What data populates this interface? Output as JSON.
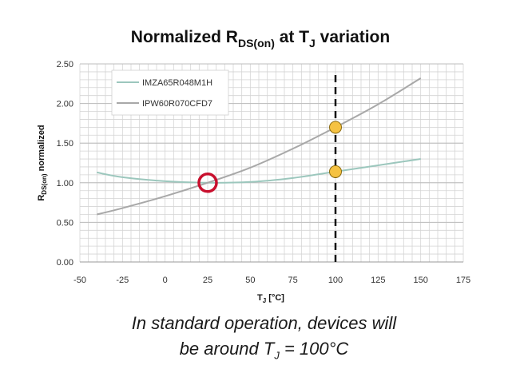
{
  "chart_data": {
    "type": "line",
    "title": "Normalized R",
    "title_sub": "DS(on)",
    "title_mid": " at T",
    "title_sub2": "J",
    "title_end": " variation",
    "xlabel": "T",
    "xlabel_sub": "J",
    "xlabel_end": " [°C]",
    "ylabel": "R",
    "ylabel_sub": "DS(on)",
    "ylabel_end": " normalized",
    "xlim": [
      -50,
      175
    ],
    "ylim": [
      0,
      2.5
    ],
    "x_ticks": [
      -50,
      -25,
      0,
      25,
      50,
      75,
      100,
      125,
      150,
      175
    ],
    "y_ticks": [
      "0.00",
      "0.50",
      "1.00",
      "1.50",
      "2.00",
      "2.50"
    ],
    "y_tick_values": [
      0,
      0.5,
      1,
      1.5,
      2,
      2.5
    ],
    "grid": true,
    "legend_position": "top-left",
    "series": [
      {
        "name": "IMZA65R048M1H",
        "color": "#9cc7bd",
        "x": [
          -40,
          -25,
          0,
          25,
          50,
          75,
          100,
          125,
          150
        ],
        "y": [
          1.13,
          1.07,
          1.02,
          1.0,
          1.01,
          1.06,
          1.14,
          1.22,
          1.3
        ]
      },
      {
        "name": "IPW60R070CFD7",
        "color": "#a8a8a8",
        "x": [
          -40,
          -25,
          0,
          25,
          50,
          75,
          100,
          125,
          150
        ],
        "y": [
          0.6,
          0.68,
          0.83,
          1.0,
          1.19,
          1.43,
          1.7,
          1.99,
          2.32
        ]
      }
    ],
    "annotations": {
      "reference_line_x": 100,
      "reference_line_color": "#111111",
      "highlight_points": [
        {
          "x": 100,
          "y": 1.7,
          "color": "#f5c242"
        },
        {
          "x": 100,
          "y": 1.14,
          "color": "#f5c242"
        }
      ],
      "crossover_circle": {
        "x": 25,
        "y": 1.0,
        "color": "#c8102e"
      }
    }
  },
  "caption": {
    "line1": "In standard operation, devices will",
    "line2_pre": "be around T",
    "line2_sub": "J",
    "line2_post": " = 100°C"
  }
}
